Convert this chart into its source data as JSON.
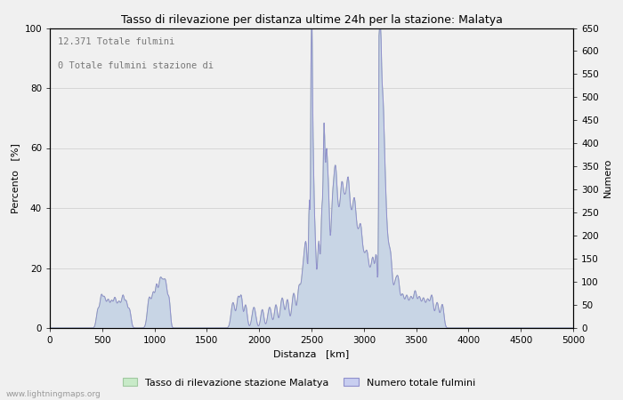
{
  "title": "Tasso di rilevazione per distanza ultime 24h per la stazione: Malatya",
  "xlabel": "Distanza   [km]",
  "ylabel_left": "Percento   [%]",
  "ylabel_right": "Numero",
  "annotation_line1": "12.371 Totale fulmini",
  "annotation_line2": "0 Totale fulmini stazione di",
  "legend_green": "Tasso di rilevazione stazione Malatya",
  "legend_blue": "Numero totale fulmini",
  "footer": "www.lightningmaps.org",
  "xlim": [
    0,
    5000
  ],
  "ylim_left": [
    0,
    100
  ],
  "ylim_right": [
    0,
    650
  ],
  "xticks": [
    0,
    500,
    1000,
    1500,
    2000,
    2500,
    3000,
    3500,
    4000,
    4500,
    5000
  ],
  "yticks_left": [
    0,
    20,
    40,
    60,
    80,
    100
  ],
  "yticks_right": [
    0,
    50,
    100,
    150,
    200,
    250,
    300,
    350,
    400,
    450,
    500,
    550,
    600,
    650
  ],
  "color_green_fill": "#c8eac8",
  "color_green_line": "#a0c8a0",
  "color_blue_fill": "#c8cef0",
  "color_blue_line": "#9090cc",
  "background_color": "#f0f0f0",
  "grid_color": "#cccccc",
  "title_fontsize": 9,
  "label_fontsize": 8,
  "tick_fontsize": 7.5,
  "annotation_fontsize": 7.5
}
